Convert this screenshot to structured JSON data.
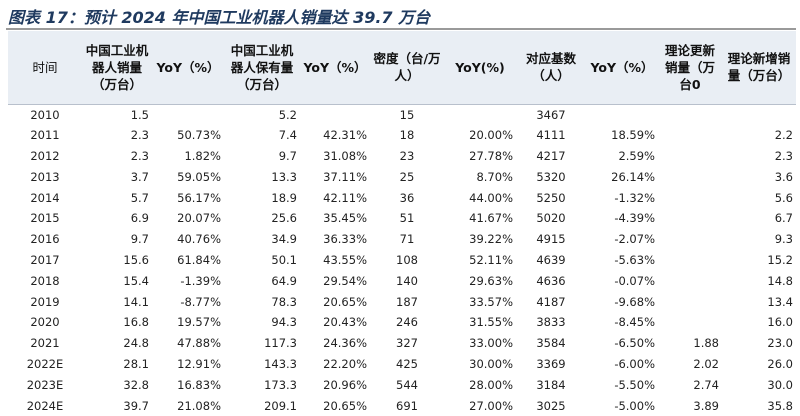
{
  "title": "图表 17：预计 2024 年中国工业机器人销量达 39.7 万台",
  "columns": [
    "时间",
    "中国工业机器人销量（万台）",
    "YoY（%）",
    "中国工业机器人保有量（万台）",
    "YoY（%）",
    "密度（台/万人）",
    "YoY(%)",
    "对应基数（人）",
    "YoY（%）",
    "理论更新销量（万台0",
    "理论新增销量（万台）"
  ],
  "rows": [
    [
      "2010",
      "1.5",
      "",
      "5.2",
      "",
      "15",
      "",
      "3467",
      "",
      "",
      ""
    ],
    [
      "2011",
      "2.3",
      "50.73%",
      "7.4",
      "42.31%",
      "18",
      "20.00%",
      "4111",
      "18.59%",
      "",
      "2.2"
    ],
    [
      "2012",
      "2.3",
      "1.82%",
      "9.7",
      "31.08%",
      "23",
      "27.78%",
      "4217",
      "2.59%",
      "",
      "2.3"
    ],
    [
      "2013",
      "3.7",
      "59.05%",
      "13.3",
      "37.11%",
      "25",
      "8.70%",
      "5320",
      "26.14%",
      "",
      "3.6"
    ],
    [
      "2014",
      "5.7",
      "56.17%",
      "18.9",
      "42.11%",
      "36",
      "44.00%",
      "5250",
      "-1.32%",
      "",
      "5.6"
    ],
    [
      "2015",
      "6.9",
      "20.07%",
      "25.6",
      "35.45%",
      "51",
      "41.67%",
      "5020",
      "-4.39%",
      "",
      "6.7"
    ],
    [
      "2016",
      "9.7",
      "40.76%",
      "34.9",
      "36.33%",
      "71",
      "39.22%",
      "4915",
      "-2.07%",
      "",
      "9.3"
    ],
    [
      "2017",
      "15.6",
      "61.84%",
      "50.1",
      "43.55%",
      "108",
      "52.11%",
      "4639",
      "-5.63%",
      "",
      "15.2"
    ],
    [
      "2018",
      "15.4",
      "-1.39%",
      "64.9",
      "29.54%",
      "140",
      "29.63%",
      "4636",
      "-0.07%",
      "",
      "14.8"
    ],
    [
      "2019",
      "14.1",
      "-8.77%",
      "78.3",
      "20.65%",
      "187",
      "33.57%",
      "4187",
      "-9.68%",
      "",
      "13.4"
    ],
    [
      "2020",
      "16.8",
      "19.57%",
      "94.3",
      "20.43%",
      "246",
      "31.55%",
      "3833",
      "-8.45%",
      "",
      "16.0"
    ],
    [
      "2021",
      "24.8",
      "47.88%",
      "117.3",
      "24.36%",
      "327",
      "33.00%",
      "3584",
      "-6.50%",
      "1.88",
      "23.0"
    ],
    [
      "2022E",
      "28.1",
      "12.91%",
      "143.3",
      "22.20%",
      "425",
      "30.00%",
      "3369",
      "-6.00%",
      "2.02",
      "26.0"
    ],
    [
      "2023E",
      "32.8",
      "16.83%",
      "173.3",
      "20.96%",
      "544",
      "28.00%",
      "3184",
      "-5.50%",
      "2.74",
      "30.0"
    ],
    [
      "2024E",
      "39.7",
      "21.08%",
      "209.1",
      "20.65%",
      "691",
      "27.00%",
      "3025",
      "-5.00%",
      "3.89",
      "35.8"
    ]
  ]
}
